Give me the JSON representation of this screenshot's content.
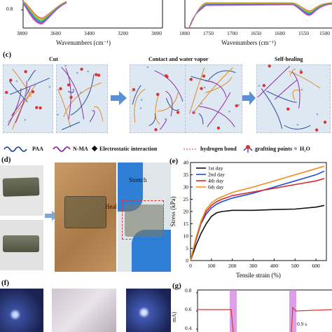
{
  "panel_a": {
    "tick_y": "0.8",
    "x_ticks": [
      "3800",
      "3600",
      "3400",
      "3200",
      "3000"
    ],
    "x_title": "Wavenumbers (cm⁻¹)"
  },
  "panel_b": {
    "x_ticks": [
      "1800",
      "1750",
      "1700",
      "1650",
      "1600",
      "1550",
      "1500"
    ],
    "x_title": "Wavenumbers (cm⁻¹)"
  },
  "panel_c": {
    "label": "(c)",
    "stages": [
      "Cut",
      "Contact and water vapor",
      "Self-healing"
    ]
  },
  "legend": {
    "items": [
      "PAA",
      "N-MA",
      "Electrostatic interaction",
      "hydrogen bond",
      "graftting points",
      "H₂O"
    ]
  },
  "panel_d": {
    "label": "(d)",
    "heal": "Heal",
    "stretch": "Stretch"
  },
  "panel_e": {
    "label": "(e)",
    "chart_data": {
      "type": "line",
      "xlabel": "Tensile strain (%)",
      "ylabel": "Stress (kPa)",
      "xlim": [
        0,
        650
      ],
      "ylim": [
        0,
        40
      ],
      "x_ticks": [
        0,
        100,
        200,
        300,
        400,
        500,
        600
      ],
      "y_ticks": [
        0,
        5,
        10,
        15,
        20,
        25,
        30,
        35,
        40
      ],
      "series": [
        {
          "name": "1st day",
          "color": "#111111",
          "x": [
            0,
            25,
            50,
            75,
            100,
            125,
            150,
            200,
            300,
            400,
            500,
            600,
            640
          ],
          "y": [
            0,
            6,
            11,
            15,
            18,
            19.5,
            20,
            20.5,
            20.5,
            20.8,
            21,
            21.8,
            22.5
          ]
        },
        {
          "name": "2nd day",
          "color": "#1f4fd8",
          "x": [
            0,
            25,
            50,
            75,
            100,
            125,
            150,
            200,
            300,
            400,
            500,
            600,
            640
          ],
          "y": [
            0,
            8,
            15,
            19,
            21.5,
            23,
            24,
            25.5,
            27.5,
            30,
            32.5,
            35,
            36.5
          ]
        },
        {
          "name": "4th day",
          "color": "#d92a2a",
          "x": [
            0,
            25,
            50,
            75,
            100,
            125,
            150,
            200,
            300,
            400,
            500,
            600,
            640
          ],
          "y": [
            0,
            8.5,
            15.5,
            20,
            22.5,
            24,
            25,
            26.5,
            28,
            29.5,
            31,
            32.5,
            33.5
          ]
        },
        {
          "name": "6th day",
          "color": "#f08c1c",
          "x": [
            0,
            25,
            50,
            75,
            100,
            125,
            150,
            200,
            300,
            400,
            500,
            600,
            640
          ],
          "y": [
            0,
            9,
            16,
            21,
            23.5,
            25,
            26,
            27.8,
            30,
            32.5,
            35,
            37.5,
            38.5
          ]
        }
      ]
    }
  },
  "panel_f": {
    "label": "(f)"
  },
  "panel_g": {
    "label": "(g)",
    "ylabel": "mA)",
    "y_ticks": [
      "0.8",
      "0.6",
      "0.4"
    ],
    "annotation": "0.9 s"
  }
}
